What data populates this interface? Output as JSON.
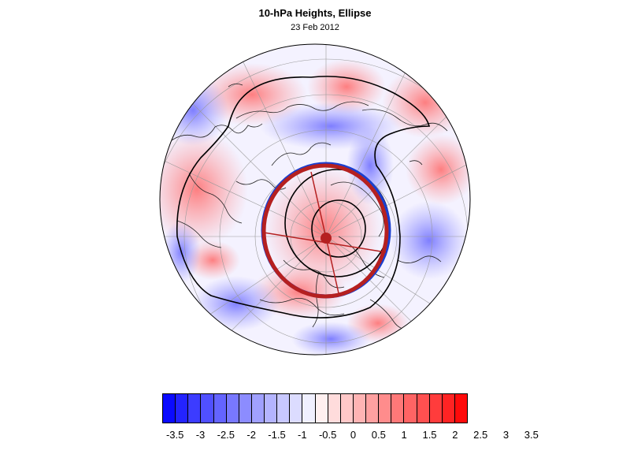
{
  "title": "10-hPa Heights, Ellipse",
  "subtitle": "23 Feb 2012",
  "map": {
    "projection": "polar-stereographic-north",
    "field": "standardized 10-hPa height anomaly"
  },
  "colorbar": {
    "colors": [
      "#0a0aff",
      "#2323ff",
      "#3c3cff",
      "#5050ff",
      "#6464ff",
      "#7878ff",
      "#8c8cff",
      "#a0a0ff",
      "#b4b4ff",
      "#c8c8ff",
      "#dcdcff",
      "#f0f0ff",
      "#fff0f0",
      "#ffdcdc",
      "#ffc8c8",
      "#ffb4b4",
      "#ffa0a0",
      "#ff8c8c",
      "#ff7878",
      "#ff6464",
      "#ff5050",
      "#ff3c3c",
      "#ff2323",
      "#ff0a0a"
    ],
    "labels": [
      "-3.5",
      "-3",
      "-2.5",
      "-2",
      "-1.5",
      "-1",
      "-0.5",
      "0",
      "0.5",
      "1",
      "1.5",
      "2",
      "2.5",
      "3",
      "3.5"
    ]
  }
}
